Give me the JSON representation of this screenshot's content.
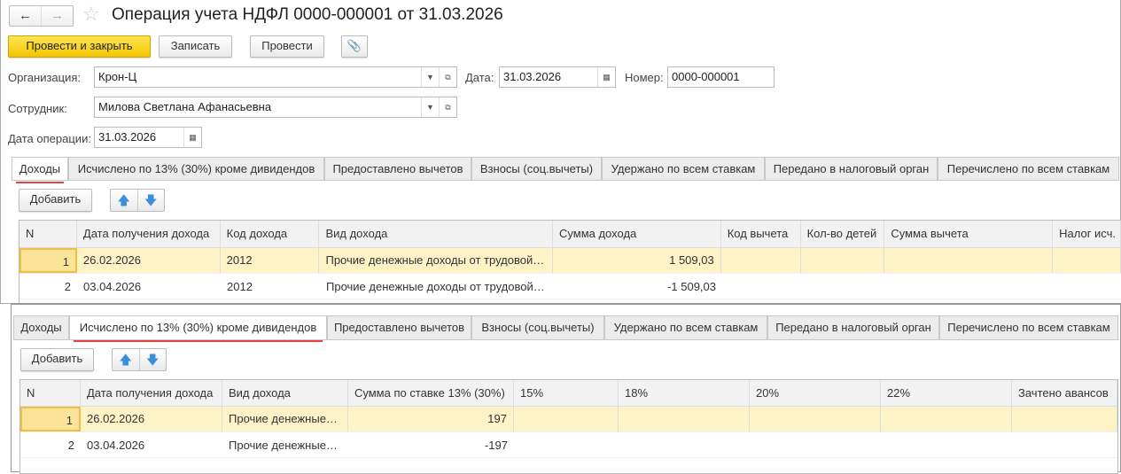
{
  "window": {
    "title": "Операция учета НДФЛ 0000-000001 от 31.03.2026"
  },
  "nav": {
    "back_icon": "arrow-left",
    "forward_icon": "arrow-right",
    "favorite_icon": "star"
  },
  "toolbar": {
    "post_close": "Провести и закрыть",
    "save": "Записать",
    "post": "Провести",
    "attach_icon": "paperclip"
  },
  "form": {
    "org_label": "Организация:",
    "org_value": "Крон-Ц",
    "date_label": "Дата:",
    "date_value": "31.03.2026",
    "number_label": "Номер:",
    "number_value": "0000-000001",
    "employee_label": "Сотрудник:",
    "employee_value": "Милова Светлана Афанасьевна",
    "opdate_label": "Дата операции:",
    "opdate_value": "31.03.2026"
  },
  "tabs": [
    "Доходы",
    "Исчислено по 13% (30%) кроме дивидендов",
    "Предоставлено вычетов",
    "Взносы (соц.вычеты)",
    "Удержано по всем ставкам",
    "Передано в налоговый орган",
    "Перечислено по всем ставкам"
  ],
  "colors": {
    "accent": "#f2c500",
    "underline": "#e84040",
    "selected_row": "#fdf3c6"
  },
  "panel1": {
    "active_tab": "Доходы",
    "add": "Добавить",
    "columns": [
      "N",
      "Дата получения дохода",
      "Код дохода",
      "Вид дохода",
      "Сумма дохода",
      "Код вычета",
      "Кол-во детей",
      "Сумма вычета",
      "Налог исч."
    ],
    "rows": [
      [
        "1",
        "26.02.2026",
        "2012",
        "Прочие денежные доходы от трудовой…",
        "1 509,03",
        "",
        "",
        "",
        ""
      ],
      [
        "2",
        "03.04.2026",
        "2012",
        "Прочие денежные доходы от трудовой…",
        "-1 509,03",
        "",
        "",
        "",
        ""
      ]
    ]
  },
  "panel2": {
    "active_tab": "Исчислено по 13% (30%) кроме дивидендов",
    "add": "Добавить",
    "columns": [
      "N",
      "Дата получения дохода",
      "Вид дохода",
      "Сумма по ставке 13% (30%)",
      "15%",
      "18%",
      "20%",
      "22%",
      "Зачтено авансов"
    ],
    "rows": [
      [
        "1",
        "26.02.2026",
        "Прочие денежные…",
        "197",
        "",
        "",
        "",
        "",
        ""
      ],
      [
        "2",
        "03.04.2026",
        "Прочие денежные…",
        "-197",
        "",
        "",
        "",
        "",
        ""
      ]
    ]
  }
}
